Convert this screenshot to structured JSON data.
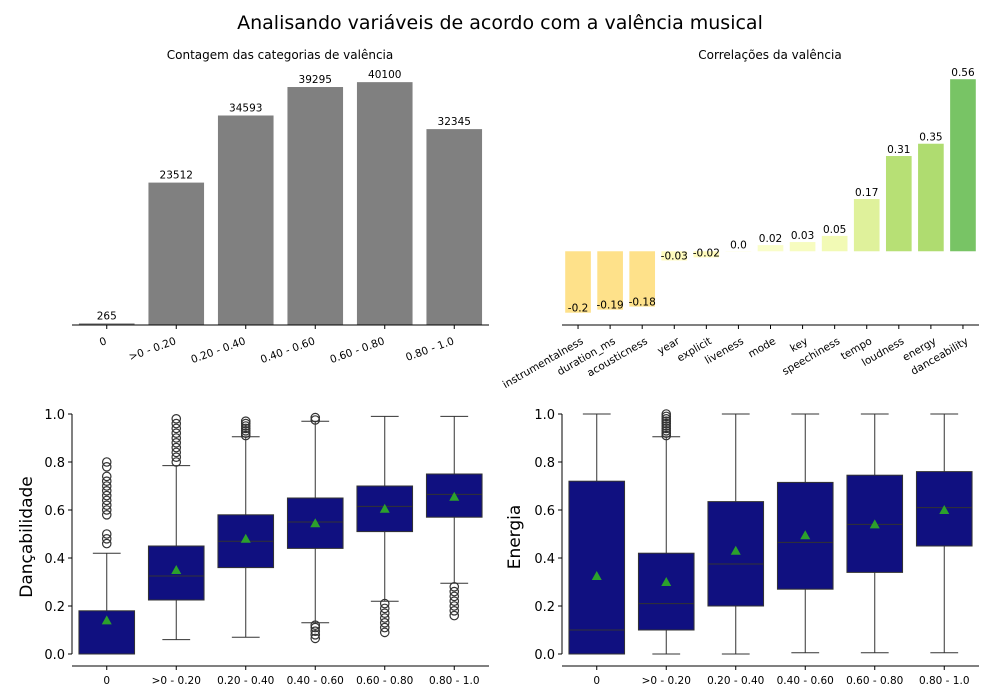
{
  "figure": {
    "suptitle": "Analisando variáveis de acordo com a valência musical"
  },
  "chart_data": [
    {
      "type": "bar",
      "title": "Contagem das categorias de valência",
      "xlabel": "",
      "ylabel": "",
      "categories": [
        "0",
        ">0 - 0.20",
        "0.20 - 0.40",
        "0.40 - 0.60",
        "0.60 - 0.80",
        "0.80 - 1.0"
      ],
      "values": [
        265,
        23512,
        34593,
        39295,
        40100,
        32345
      ],
      "data_labels": [
        "265",
        "23512",
        "34593",
        "39295",
        "40100",
        "32345"
      ],
      "ylim": [
        0,
        42105
      ],
      "color": "#808080",
      "tick_rotation": 20,
      "y_axis_visible": false,
      "grid": false
    },
    {
      "type": "bar",
      "title": "Correlações da valência",
      "xlabel": "",
      "ylabel": "",
      "categories": [
        "instrumentalness",
        "duration_ms",
        "acousticness",
        "year",
        "explicit",
        "liveness",
        "mode",
        "key",
        "speechiness",
        "tempo",
        "loudness",
        "energy",
        "danceability"
      ],
      "values": [
        -0.2,
        -0.19,
        -0.18,
        -0.03,
        -0.02,
        0.0,
        0.02,
        0.03,
        0.05,
        0.17,
        0.31,
        0.35,
        0.56
      ],
      "data_labels": [
        "-0.2",
        "-0.19",
        "-0.18",
        "-0.03",
        "-0.02",
        "0.0",
        "0.02",
        "0.03",
        "0.05",
        "0.17",
        "0.31",
        "0.35",
        "0.56"
      ],
      "colors": [
        "#fee18a",
        "#fee18a",
        "#fee18a",
        "#fffbbd",
        "#fffbbd",
        "#ffffe5",
        "#f9fdc9",
        "#f7fcc0",
        "#f2fab5",
        "#dff19b",
        "#b7e075",
        "#afdc70",
        "#78c465"
      ],
      "ylim": [
        -0.24,
        0.59
      ],
      "tick_rotation": 30,
      "y_axis_visible": false,
      "grid": false
    },
    {
      "type": "box",
      "title": "",
      "xlabel": "",
      "ylabel": "Dançabilidade",
      "categories": [
        "0",
        ">0 - 0.20",
        "0.20 - 0.40",
        "0.40 - 0.60",
        "0.60 - 0.80",
        "0.80 - 1.0"
      ],
      "ylim": [
        -0.05,
        1.05
      ],
      "yticks": [
        0.0,
        0.2,
        0.4,
        0.6,
        0.8,
        1.0
      ],
      "ytick_labels": [
        "0.0",
        "0.2",
        "0.4",
        "0.6",
        "0.8",
        "1.0"
      ],
      "box_color": "#101080",
      "mean_marker_color": "#2ca02c",
      "boxes": [
        {
          "whisker_low": 0.0,
          "q1": 0.0,
          "median": 0.0,
          "q3": 0.18,
          "whisker_high": 0.42,
          "mean": 0.14,
          "outliers_high": [
            0.46,
            0.48,
            0.5,
            0.58,
            0.6,
            0.62,
            0.64,
            0.66,
            0.68,
            0.7,
            0.72,
            0.74,
            0.78,
            0.8
          ],
          "outliers_low": []
        },
        {
          "whisker_low": 0.06,
          "q1": 0.225,
          "median": 0.325,
          "q3": 0.45,
          "whisker_high": 0.785,
          "mean": 0.35,
          "outliers_high": [
            0.8,
            0.82,
            0.84,
            0.86,
            0.88,
            0.9,
            0.92,
            0.94,
            0.96,
            0.98
          ],
          "outliers_low": []
        },
        {
          "whisker_low": 0.07,
          "q1": 0.36,
          "median": 0.47,
          "q3": 0.58,
          "whisker_high": 0.905,
          "mean": 0.48,
          "outliers_high": [
            0.91,
            0.92,
            0.93,
            0.94,
            0.95,
            0.96,
            0.97
          ],
          "outliers_low": []
        },
        {
          "whisker_low": 0.13,
          "q1": 0.44,
          "median": 0.55,
          "q3": 0.65,
          "whisker_high": 0.97,
          "mean": 0.545,
          "outliers_high": [
            0.975,
            0.985
          ],
          "outliers_low": [
            0.065,
            0.08,
            0.095,
            0.11,
            0.12
          ]
        },
        {
          "whisker_low": 0.22,
          "q1": 0.51,
          "median": 0.615,
          "q3": 0.7,
          "whisker_high": 0.99,
          "mean": 0.605,
          "outliers_high": [],
          "outliers_low": [
            0.09,
            0.11,
            0.13,
            0.15,
            0.17,
            0.19,
            0.21
          ]
        },
        {
          "whisker_low": 0.295,
          "q1": 0.57,
          "median": 0.665,
          "q3": 0.75,
          "whisker_high": 0.99,
          "mean": 0.655,
          "outliers_high": [],
          "outliers_low": [
            0.16,
            0.18,
            0.2,
            0.22,
            0.24,
            0.26,
            0.28
          ]
        }
      ]
    },
    {
      "type": "box",
      "title": "",
      "xlabel": "",
      "ylabel": "Energia",
      "categories": [
        "0",
        ">0 - 0.20",
        "0.20 - 0.40",
        "0.40 - 0.60",
        "0.60 - 0.80",
        "0.80 - 1.0"
      ],
      "ylim": [
        -0.05,
        1.05
      ],
      "yticks": [
        0.0,
        0.2,
        0.4,
        0.6,
        0.8,
        1.0
      ],
      "ytick_labels": [
        "0.0",
        "0.2",
        "0.4",
        "0.6",
        "0.8",
        "1.0"
      ],
      "box_color": "#101080",
      "mean_marker_color": "#2ca02c",
      "boxes": [
        {
          "whisker_low": 0.0,
          "q1": 0.0,
          "median": 0.1,
          "q3": 0.72,
          "whisker_high": 1.0,
          "mean": 0.325,
          "outliers_high": [],
          "outliers_low": []
        },
        {
          "whisker_low": 0.0,
          "q1": 0.1,
          "median": 0.21,
          "q3": 0.42,
          "whisker_high": 0.905,
          "mean": 0.3,
          "outliers_high": [
            0.91,
            0.92,
            0.93,
            0.94,
            0.95,
            0.96,
            0.97,
            0.98,
            0.99,
            1.0
          ],
          "outliers_low": []
        },
        {
          "whisker_low": 0.0,
          "q1": 0.2,
          "median": 0.375,
          "q3": 0.635,
          "whisker_high": 1.0,
          "mean": 0.43,
          "outliers_high": [],
          "outliers_low": []
        },
        {
          "whisker_low": 0.005,
          "q1": 0.27,
          "median": 0.465,
          "q3": 0.715,
          "whisker_high": 1.0,
          "mean": 0.495,
          "outliers_high": [],
          "outliers_low": []
        },
        {
          "whisker_low": 0.005,
          "q1": 0.34,
          "median": 0.54,
          "q3": 0.745,
          "whisker_high": 1.0,
          "mean": 0.54,
          "outliers_high": [],
          "outliers_low": []
        },
        {
          "whisker_low": 0.005,
          "q1": 0.45,
          "median": 0.61,
          "q3": 0.76,
          "whisker_high": 1.0,
          "mean": 0.6,
          "outliers_high": [],
          "outliers_low": []
        }
      ]
    }
  ]
}
